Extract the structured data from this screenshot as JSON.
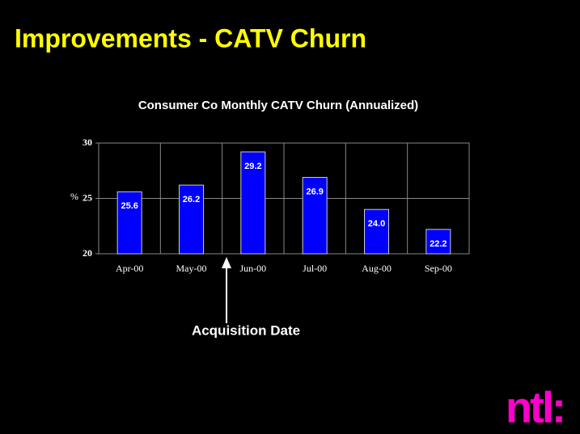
{
  "slide_title": "Improvements - CATV Churn",
  "logo": "ntl:",
  "chart_data": {
    "type": "bar",
    "title": "Consumer Co Monthly CATV Churn (Annualized)",
    "y_label": "%",
    "categories": [
      "Apr-00",
      "May-00",
      "Jun-00",
      "Jul-00",
      "Aug-00",
      "Sep-00"
    ],
    "values": [
      25.6,
      26.2,
      29.2,
      26.9,
      24.0,
      22.2
    ],
    "value_labels": [
      "25.6",
      "26.2",
      "29.2",
      "26.9",
      "24.0",
      "22.2"
    ],
    "color": "#0000ff",
    "ylim": [
      20,
      30
    ],
    "yticks": [
      20,
      25,
      30
    ],
    "grid": true,
    "annotation": "Acquisition Date"
  }
}
